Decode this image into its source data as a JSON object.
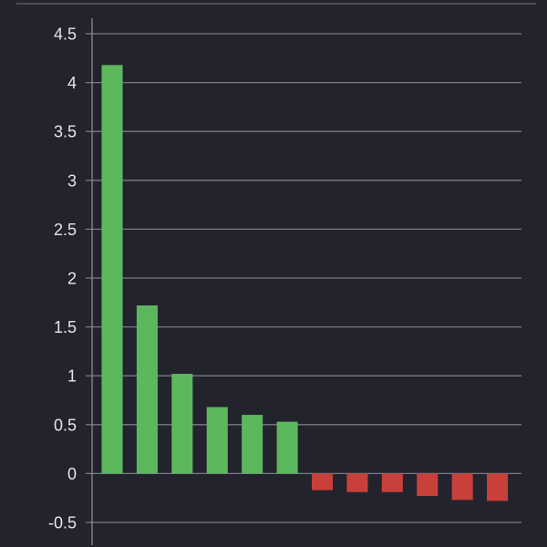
{
  "chart_data": {
    "type": "bar",
    "title": "",
    "xlabel": "",
    "ylabel": "",
    "ylim": [
      -0.5,
      4.5
    ],
    "yticks": [
      -0.5,
      0,
      0.5,
      1,
      1.5,
      2,
      2.5,
      3,
      3.5,
      4,
      4.5
    ],
    "ytick_labels": [
      "-0.5",
      "0",
      "0.5",
      "1",
      "1.5",
      "2",
      "2.5",
      "3",
      "3.5",
      "4",
      "4.5"
    ],
    "grid": true,
    "legend": "none",
    "categories": [
      "",
      "",
      "",
      "",
      "",
      "",
      "",
      "",
      "",
      "",
      "",
      ""
    ],
    "values": [
      4.18,
      1.72,
      1.02,
      0.68,
      0.6,
      0.53,
      -0.17,
      -0.19,
      -0.19,
      -0.23,
      -0.27,
      -0.28
    ],
    "colors": {
      "positive": "#5cb85c",
      "negative": "#c9403a"
    }
  }
}
